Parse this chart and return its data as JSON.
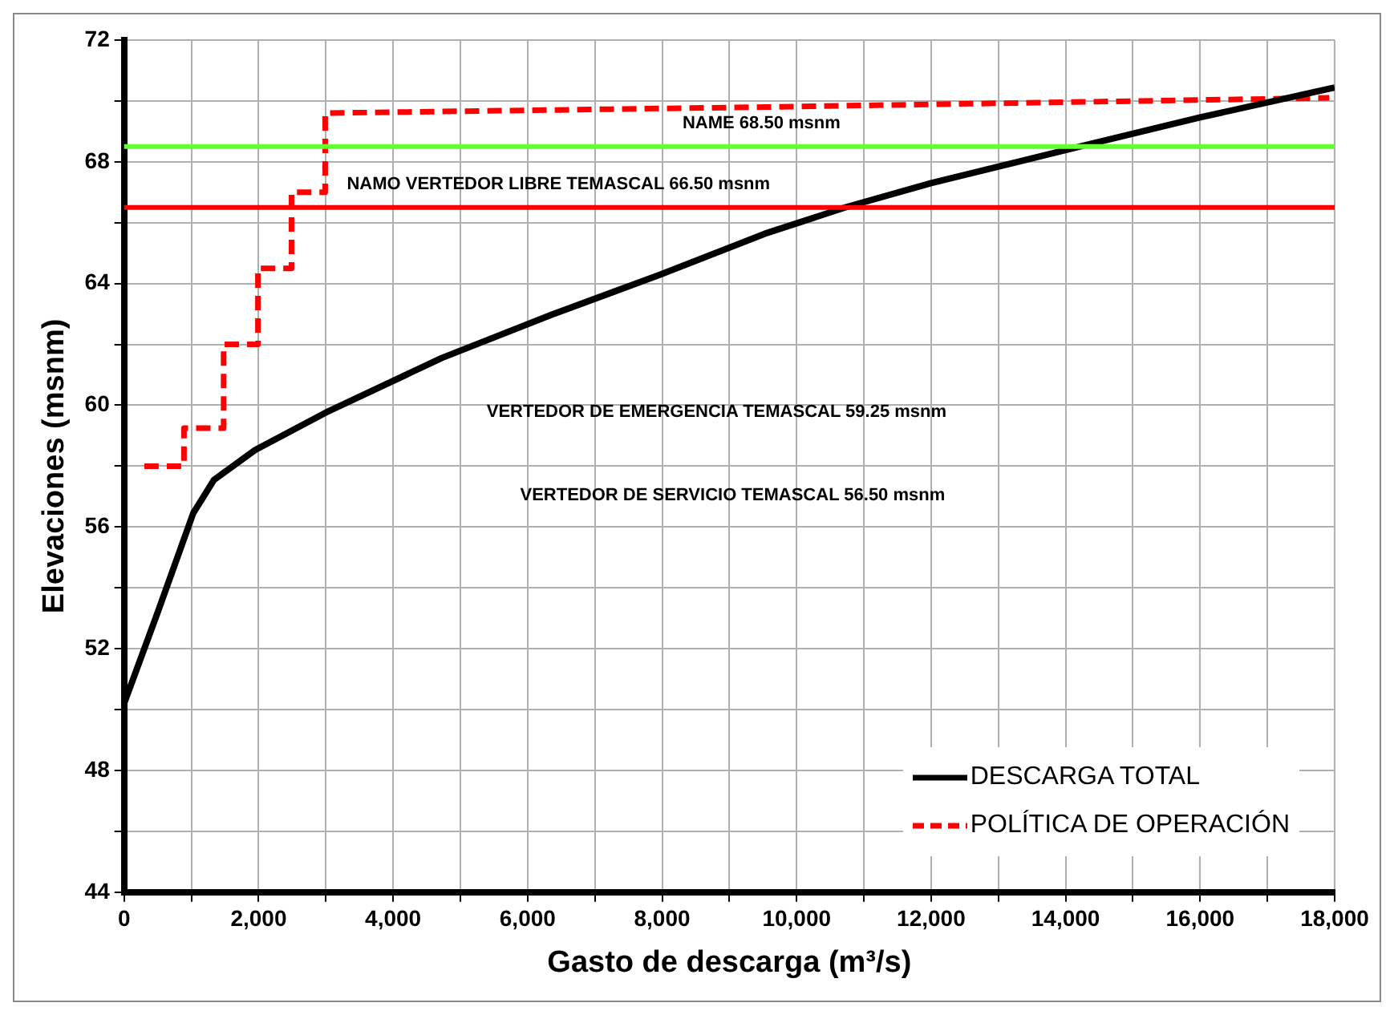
{
  "chart_data": {
    "type": "line",
    "xlabel": "Gasto de descarga (m³/s)",
    "ylabel": "Elevaciones (msnm)",
    "series": [
      {
        "name": "DESCARGA TOTAL",
        "color": "#000000",
        "line_style": "solid",
        "x": [
          0,
          500,
          1027,
          1337,
          1949,
          3008,
          4720,
          6350,
          7980,
          9530,
          10750,
          12000,
          14340,
          16000,
          18000
        ],
        "values": [
          50.2,
          53.2,
          56.45,
          57.55,
          58.53,
          59.77,
          61.55,
          62.97,
          64.3,
          65.64,
          66.52,
          67.3,
          68.57,
          69.46,
          70.44
        ]
      },
      {
        "name": "POLÍTICA DE OPERACIÓN",
        "color": "#ff0000",
        "line_style": "dashed",
        "x": [
          300,
          890,
          890,
          1480,
          1480,
          1990,
          1990,
          2490,
          2490,
          2990,
          2990,
          9530,
          17920
        ],
        "values": [
          58.0,
          58.0,
          59.25,
          59.25,
          62.0,
          62.0,
          64.5,
          64.5,
          67.0,
          67.0,
          69.6,
          69.8,
          70.1
        ]
      }
    ],
    "xlim": [
      0,
      18000
    ],
    "xticks": [
      0,
      {
        "value": 1000,
        "label": null
      },
      {
        "value": 2000,
        "label": "2,000"
      },
      {
        "value": 3000,
        "label": null
      },
      {
        "value": 4000,
        "label": "4,000"
      },
      {
        "value": 5000,
        "label": null
      },
      {
        "value": 6000,
        "label": "6,000"
      },
      {
        "value": 7000,
        "label": null
      },
      {
        "value": 8000,
        "label": "8,000"
      },
      {
        "value": 9000,
        "label": null
      },
      {
        "value": 10000,
        "label": "10,000"
      },
      {
        "value": 11000,
        "label": null
      },
      {
        "value": 12000,
        "label": "12,000"
      },
      {
        "value": 13000,
        "label": null
      },
      {
        "value": 14000,
        "label": "14,000"
      },
      {
        "value": 15000,
        "label": null
      },
      {
        "value": 16000,
        "label": "16,000"
      },
      {
        "value": 17000,
        "label": null
      },
      {
        "value": 18000,
        "label": "18,000"
      }
    ],
    "ylim": [
      44,
      72
    ],
    "yticks": [
      44,
      {
        "value": 46,
        "label": null
      },
      48,
      {
        "value": 50,
        "label": null
      },
      52,
      {
        "value": 54,
        "label": null
      },
      56,
      {
        "value": 58,
        "label": null
      },
      60,
      {
        "value": 62,
        "label": null
      },
      64,
      {
        "value": 66,
        "label": null
      },
      68,
      {
        "value": 70,
        "label": null
      },
      72
    ],
    "ref_lines": [
      {
        "axis": "y",
        "value": 68.5,
        "label": "NAME 68.50 msnm",
        "color": "#66ff33"
      },
      {
        "axis": "y",
        "value": 66.5,
        "label": "NAMO VERTEDOR LIBRE TEMASCAL 66.50 msnm",
        "color": "#ff0000"
      }
    ],
    "annotations": [
      "VERTEDOR DE EMERGENCIA TEMASCAL 59.25 msnm",
      "VERTEDOR DE SERVICIO TEMASCAL 56.50 msnm"
    ],
    "grid": true,
    "legend": "bottom right",
    "marker": "none"
  }
}
